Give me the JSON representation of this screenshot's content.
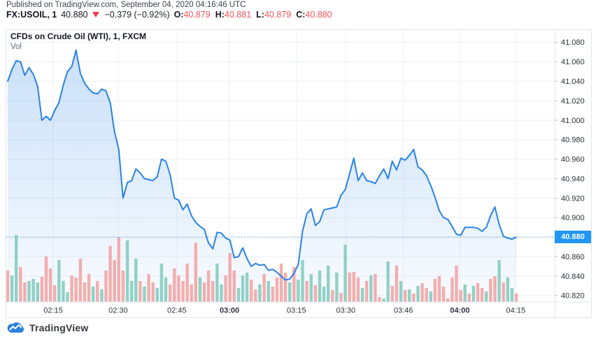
{
  "header": {
    "published_line": "Published on TradingView.com, September 04, 2020 04:16:46 UTC",
    "symbol": "FX:USOIL, 1",
    "last_price": "40.880",
    "direction": "down",
    "change": "−0.379 (−0.92%)",
    "ohlc": [
      {
        "label": "O:",
        "value": "40.879"
      },
      {
        "label": "H:",
        "value": "40.881"
      },
      {
        "label": "L:",
        "value": "40.879"
      },
      {
        "label": "C:",
        "value": "40.880"
      }
    ]
  },
  "chart": {
    "title": "CFDs on Crude Oil (WTI), 1, FXCM",
    "indicator_label": "Vol",
    "price_badge": "40.880"
  },
  "colors": {
    "line_blue": "#2a82e4",
    "badge_blue": "#2196f3",
    "dotted_price_line": "#5ba1e0",
    "grid": "#edf0f7",
    "border": "#e2e5ee",
    "axis_text": "#2a2e39",
    "vol_up": "#7fc9bc",
    "vol_down": "#f2a0a0",
    "change_red": "#f23645",
    "ohlc_value_red": "#f2545b"
  },
  "chart_data": {
    "type": [
      "area",
      "bar"
    ],
    "title": "CFDs on Crude Oil (WTI), 1, FXCM",
    "legend": false,
    "grid": true,
    "y_domain": [
      40.8135,
      41.0925
    ],
    "y_ticks": [
      41.08,
      41.06,
      41.04,
      41.02,
      41.0,
      40.98,
      40.96,
      40.94,
      40.92,
      40.9,
      40.88,
      40.86,
      40.84,
      40.82
    ],
    "current_price": 40.88,
    "x_labels": [
      {
        "t": "02:15",
        "f": 0.0855,
        "bold": false
      },
      {
        "t": "02:30",
        "f": 0.204,
        "bold": false
      },
      {
        "t": "02:45",
        "f": 0.311,
        "bold": false
      },
      {
        "t": "03:00",
        "f": 0.407,
        "bold": true
      },
      {
        "t": "03:15",
        "f": 0.529,
        "bold": false
      },
      {
        "t": "03:30",
        "f": 0.619,
        "bold": false
      },
      {
        "t": "03:46",
        "f": 0.724,
        "bold": false
      },
      {
        "t": "04:00",
        "f": 0.827,
        "bold": true
      },
      {
        "t": "04:15",
        "f": 0.929,
        "bold": false
      }
    ],
    "series": [
      {
        "name": "USOIL 1m close",
        "type": "area",
        "values": [
          41.04,
          41.052,
          41.061,
          41.06,
          41.046,
          41.054,
          41.047,
          41.035,
          41.0,
          41.004,
          41.0,
          41.01,
          41.018,
          41.036,
          41.05,
          41.055,
          41.072,
          41.048,
          41.038,
          41.032,
          41.028,
          41.027,
          41.032,
          41.03,
          41.018,
          40.988,
          40.97,
          40.92,
          40.936,
          40.938,
          40.95,
          40.946,
          40.94,
          40.939,
          40.938,
          40.942,
          40.96,
          40.958,
          40.944,
          40.92,
          40.918,
          40.908,
          40.914,
          40.902,
          40.895,
          40.891,
          40.888,
          40.874,
          40.868,
          40.885,
          40.884,
          40.879,
          40.877,
          40.859,
          40.86,
          40.869,
          40.858,
          40.85,
          40.853,
          40.851,
          40.852,
          40.846,
          40.847,
          40.844,
          40.84,
          40.836,
          40.837,
          40.843,
          40.852,
          40.886,
          40.904,
          40.909,
          40.892,
          40.896,
          40.908,
          40.909,
          40.91,
          40.911,
          40.923,
          40.929,
          40.945,
          40.961,
          40.938,
          40.946,
          40.938,
          40.937,
          40.935,
          40.943,
          40.95,
          40.94,
          40.958,
          40.949,
          40.961,
          40.959,
          40.964,
          40.97,
          40.952,
          40.949,
          40.943,
          40.933,
          40.921,
          40.907,
          40.9,
          40.898,
          40.891,
          40.883,
          40.882,
          40.89,
          40.89,
          40.89,
          40.889,
          40.886,
          40.89,
          40.902,
          40.911,
          40.893,
          40.881,
          40.879,
          40.878,
          40.88
        ]
      },
      {
        "name": "Volume",
        "type": "bar",
        "note": "pairs of [height, direction] where 1=up(teal), 0=down(red)",
        "values": [
          [
            45,
            0
          ],
          [
            38,
            1
          ],
          [
            96,
            1
          ],
          [
            50,
            0
          ],
          [
            28,
            0
          ],
          [
            30,
            1
          ],
          [
            33,
            1
          ],
          [
            28,
            1
          ],
          [
            36,
            0
          ],
          [
            65,
            0
          ],
          [
            48,
            0
          ],
          [
            24,
            0
          ],
          [
            60,
            1
          ],
          [
            30,
            1
          ],
          [
            14,
            1
          ],
          [
            38,
            0
          ],
          [
            35,
            0
          ],
          [
            62,
            0
          ],
          [
            28,
            0
          ],
          [
            40,
            0
          ],
          [
            22,
            1
          ],
          [
            30,
            0
          ],
          [
            18,
            1
          ],
          [
            45,
            0
          ],
          [
            80,
            0
          ],
          [
            60,
            0
          ],
          [
            93,
            0
          ],
          [
            45,
            0
          ],
          [
            88,
            1
          ],
          [
            30,
            1
          ],
          [
            62,
            1
          ],
          [
            30,
            0
          ],
          [
            22,
            1
          ],
          [
            40,
            0
          ],
          [
            28,
            0
          ],
          [
            20,
            1
          ],
          [
            55,
            1
          ],
          [
            35,
            1
          ],
          [
            25,
            0
          ],
          [
            48,
            0
          ],
          [
            38,
            0
          ],
          [
            30,
            0
          ],
          [
            55,
            0
          ],
          [
            25,
            0
          ],
          [
            85,
            0
          ],
          [
            35,
            1
          ],
          [
            28,
            0
          ],
          [
            45,
            0
          ],
          [
            30,
            0
          ],
          [
            55,
            1
          ],
          [
            25,
            1
          ],
          [
            38,
            0
          ],
          [
            70,
            0
          ],
          [
            45,
            0
          ],
          [
            20,
            1
          ],
          [
            38,
            1
          ],
          [
            42,
            1
          ],
          [
            32,
            0
          ],
          [
            18,
            0
          ],
          [
            25,
            1
          ],
          [
            40,
            0
          ],
          [
            30,
            1
          ],
          [
            22,
            0
          ],
          [
            35,
            0
          ],
          [
            55,
            0
          ],
          [
            42,
            0
          ],
          [
            28,
            1
          ],
          [
            50,
            0
          ],
          [
            32,
            1
          ],
          [
            60,
            1
          ],
          [
            30,
            0
          ],
          [
            40,
            1
          ],
          [
            24,
            0
          ],
          [
            45,
            1
          ],
          [
            22,
            1
          ],
          [
            52,
            1
          ],
          [
            17,
            0
          ],
          [
            42,
            1
          ],
          [
            13,
            0
          ],
          [
            82,
            1
          ],
          [
            42,
            0
          ],
          [
            43,
            0
          ],
          [
            35,
            0
          ],
          [
            20,
            1
          ],
          [
            30,
            0
          ],
          [
            38,
            1
          ],
          [
            40,
            0
          ],
          [
            7,
            0
          ],
          [
            5,
            1
          ],
          [
            58,
            1
          ],
          [
            23,
            0
          ],
          [
            52,
            0
          ],
          [
            30,
            1
          ],
          [
            17,
            0
          ],
          [
            18,
            1
          ],
          [
            12,
            0
          ],
          [
            23,
            1
          ],
          [
            27,
            0
          ],
          [
            20,
            0
          ],
          [
            15,
            1
          ],
          [
            33,
            0
          ],
          [
            37,
            0
          ],
          [
            22,
            0
          ],
          [
            5,
            0
          ],
          [
            35,
            0
          ],
          [
            52,
            0
          ],
          [
            17,
            0
          ],
          [
            25,
            1
          ],
          [
            12,
            0
          ],
          [
            23,
            1
          ],
          [
            27,
            0
          ],
          [
            20,
            0
          ],
          [
            15,
            1
          ],
          [
            33,
            0
          ],
          [
            37,
            0
          ],
          [
            60,
            1
          ],
          [
            28,
            0
          ],
          [
            35,
            1
          ],
          [
            20,
            1
          ],
          [
            12,
            0
          ]
        ]
      }
    ]
  },
  "footer": {
    "brand": "TradingView"
  }
}
